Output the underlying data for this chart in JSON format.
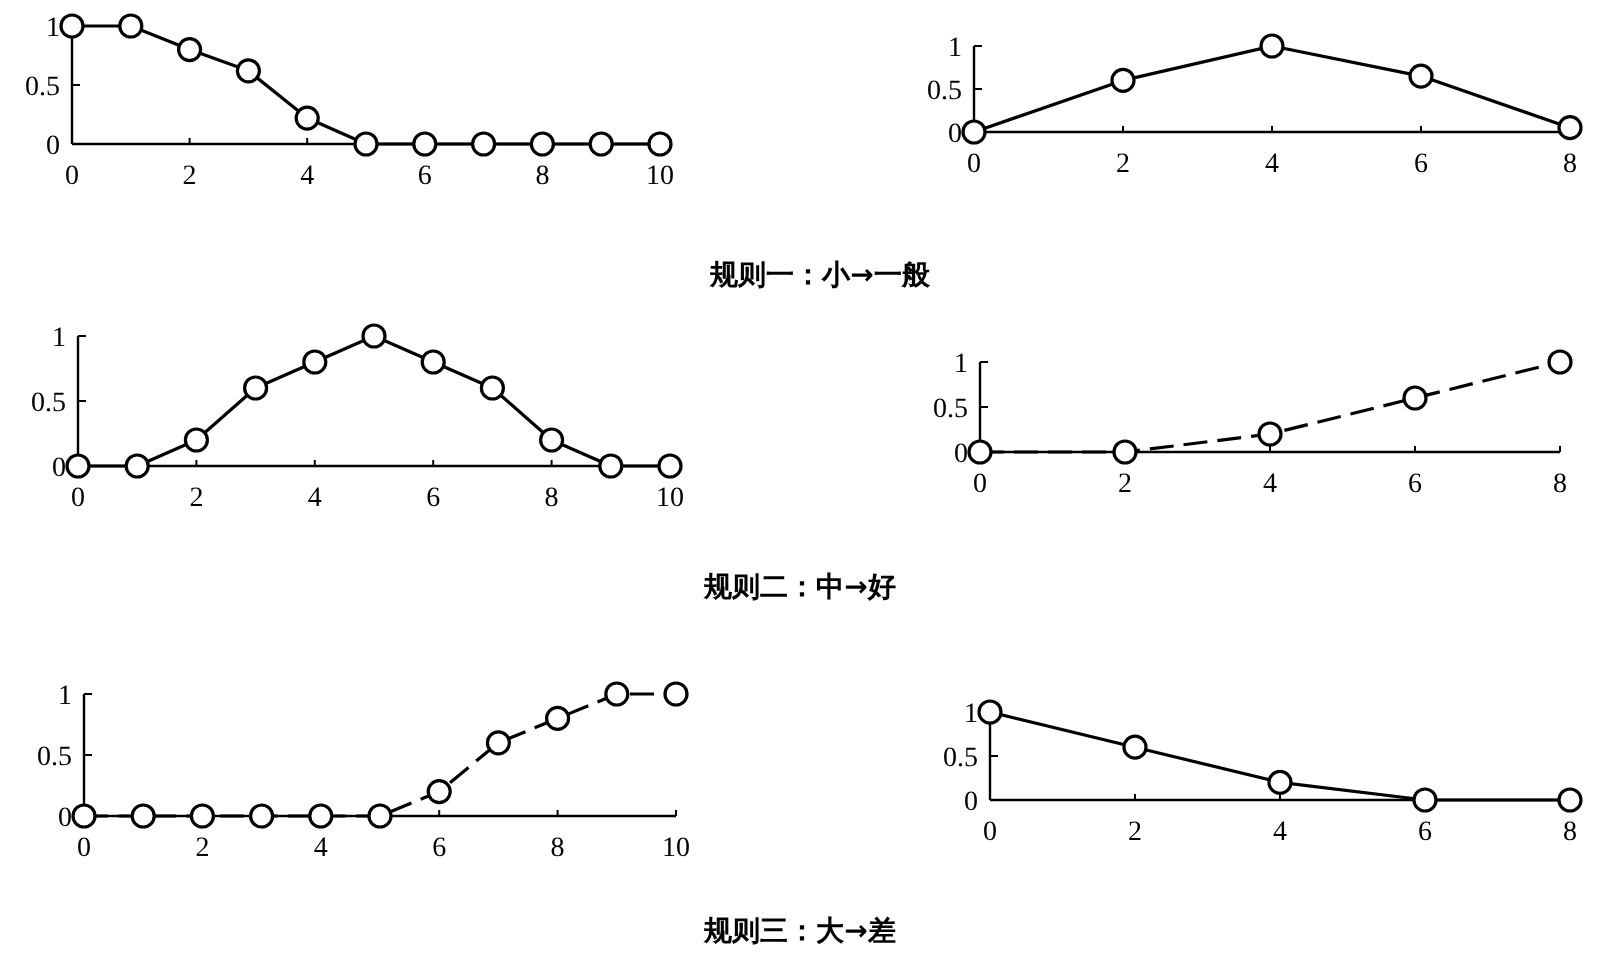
{
  "chart_data": [
    {
      "type": "line",
      "x": [
        0,
        1,
        2,
        3,
        4,
        5,
        6,
        7,
        8,
        9,
        10
      ],
      "xlim": [
        0,
        10
      ],
      "ylim": [
        0,
        1
      ],
      "xticks": [
        0,
        2,
        4,
        6,
        8,
        10
      ],
      "yticks": [
        0,
        0.5,
        1
      ],
      "marker": "circle",
      "line_style": "solid",
      "series": [
        {
          "color": "#000000",
          "values": [
            1,
            1,
            0.8,
            0.62,
            0.22,
            0,
            0,
            0,
            0,
            0,
            0
          ]
        }
      ]
    },
    {
      "type": "line",
      "x": [
        0,
        2,
        4,
        6,
        8
      ],
      "xlim": [
        0,
        8
      ],
      "ylim": [
        0,
        1
      ],
      "xticks": [
        0,
        2,
        4,
        6,
        8
      ],
      "yticks": [
        0,
        0.5,
        1
      ],
      "marker": "circle",
      "line_style": "solid",
      "series": [
        {
          "color": "#000000",
          "values": [
            0,
            0.6,
            1,
            0.65,
            0.05
          ]
        }
      ]
    },
    {
      "type": "other",
      "annotations": [
        "规则一：小→一般"
      ]
    },
    {
      "type": "line",
      "x": [
        0,
        1,
        2,
        3,
        4,
        5,
        6,
        7,
        8,
        9,
        10
      ],
      "xlim": [
        0,
        10
      ],
      "ylim": [
        0,
        1
      ],
      "xticks": [
        0,
        2,
        4,
        6,
        8,
        10
      ],
      "yticks": [
        0,
        0.5,
        1
      ],
      "marker": "circle",
      "line_style": "solid",
      "series": [
        {
          "color": "#000000",
          "values": [
            0,
            0,
            0.2,
            0.6,
            0.8,
            1,
            0.8,
            0.6,
            0.2,
            0,
            0
          ]
        }
      ]
    },
    {
      "type": "line",
      "x": [
        0,
        2,
        4,
        6,
        8
      ],
      "xlim": [
        0,
        8
      ],
      "ylim": [
        0,
        1
      ],
      "xticks": [
        0,
        2,
        4,
        6,
        8
      ],
      "yticks": [
        0,
        0.5,
        1
      ],
      "marker": "circle",
      "line_style": "dashed",
      "series": [
        {
          "color": "#000000",
          "values": [
            0,
            0,
            0.2,
            0.6,
            1
          ]
        }
      ]
    },
    {
      "type": "other",
      "annotations": [
        "规则二：中→好"
      ]
    },
    {
      "type": "line",
      "x": [
        0,
        1,
        2,
        3,
        4,
        5,
        6,
        7,
        8,
        9,
        10
      ],
      "xlim": [
        0,
        10
      ],
      "ylim": [
        0,
        1
      ],
      "xticks": [
        0,
        2,
        4,
        6,
        8,
        10
      ],
      "yticks": [
        0,
        0.5,
        1
      ],
      "marker": "circle",
      "line_style": "dashed",
      "series": [
        {
          "color": "#000000",
          "values": [
            0,
            0,
            0,
            0,
            0,
            0,
            0.2,
            0.6,
            0.8,
            1,
            1
          ]
        }
      ]
    },
    {
      "type": "line",
      "x": [
        0,
        2,
        4,
        6,
        8
      ],
      "xlim": [
        0,
        8
      ],
      "ylim": [
        0,
        1
      ],
      "xticks": [
        0,
        2,
        4,
        6,
        8
      ],
      "yticks": [
        0,
        0.5,
        1
      ],
      "marker": "circle",
      "line_style": "solid",
      "series": [
        {
          "color": "#000000",
          "values": [
            1,
            0.6,
            0.2,
            0,
            0
          ]
        }
      ]
    },
    {
      "type": "other",
      "annotations": [
        "规则三：大→差"
      ]
    }
  ]
}
